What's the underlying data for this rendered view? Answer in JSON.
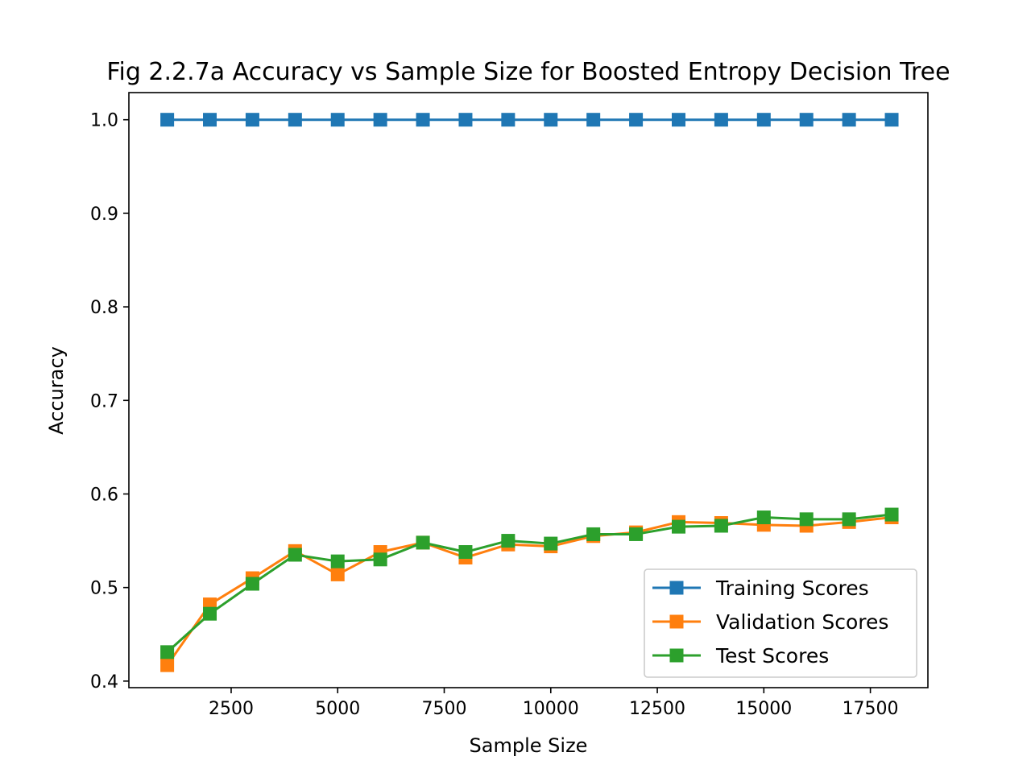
{
  "chart_data": {
    "type": "line",
    "title": "Fig 2.2.7a Accuracy vs Sample Size for Boosted Entropy Decision Tree",
    "xlabel": "Sample Size",
    "ylabel": "Accuracy",
    "xlim": [
      100,
      18850
    ],
    "ylim": [
      0.393,
      1.029
    ],
    "xticks": [
      2500,
      5000,
      7500,
      10000,
      12500,
      15000,
      17500
    ],
    "xtick_labels": [
      "2500",
      "5000",
      "7500",
      "10000",
      "12500",
      "15000",
      "17500"
    ],
    "yticks": [
      0.4,
      0.5,
      0.6,
      0.7,
      0.8,
      0.9,
      1.0
    ],
    "ytick_labels": [
      "0.4",
      "0.5",
      "0.6",
      "0.7",
      "0.8",
      "0.9",
      "1.0"
    ],
    "grid": false,
    "legend_position": "lower-right",
    "marker": "square",
    "x": [
      1000,
      2000,
      3000,
      4000,
      5000,
      6000,
      7000,
      8000,
      9000,
      10000,
      11000,
      12000,
      13000,
      14000,
      15000,
      16000,
      17000,
      18000
    ],
    "series": [
      {
        "name": "Training Scores",
        "color": "#1f77b4",
        "values": [
          1.0,
          1.0,
          1.0,
          1.0,
          1.0,
          1.0,
          1.0,
          1.0,
          1.0,
          1.0,
          1.0,
          1.0,
          1.0,
          1.0,
          1.0,
          1.0,
          1.0,
          1.0
        ]
      },
      {
        "name": "Validation Scores",
        "color": "#ff7f0e",
        "values": [
          0.417,
          0.482,
          0.51,
          0.539,
          0.514,
          0.538,
          0.548,
          0.532,
          0.546,
          0.544,
          0.555,
          0.559,
          0.57,
          0.569,
          0.567,
          0.566,
          0.57,
          0.575
        ]
      },
      {
        "name": "Test Scores",
        "color": "#2ca02c",
        "values": [
          0.431,
          0.472,
          0.504,
          0.535,
          0.528,
          0.53,
          0.548,
          0.538,
          0.55,
          0.547,
          0.557,
          0.557,
          0.565,
          0.566,
          0.575,
          0.573,
          0.573,
          0.578
        ]
      }
    ]
  }
}
